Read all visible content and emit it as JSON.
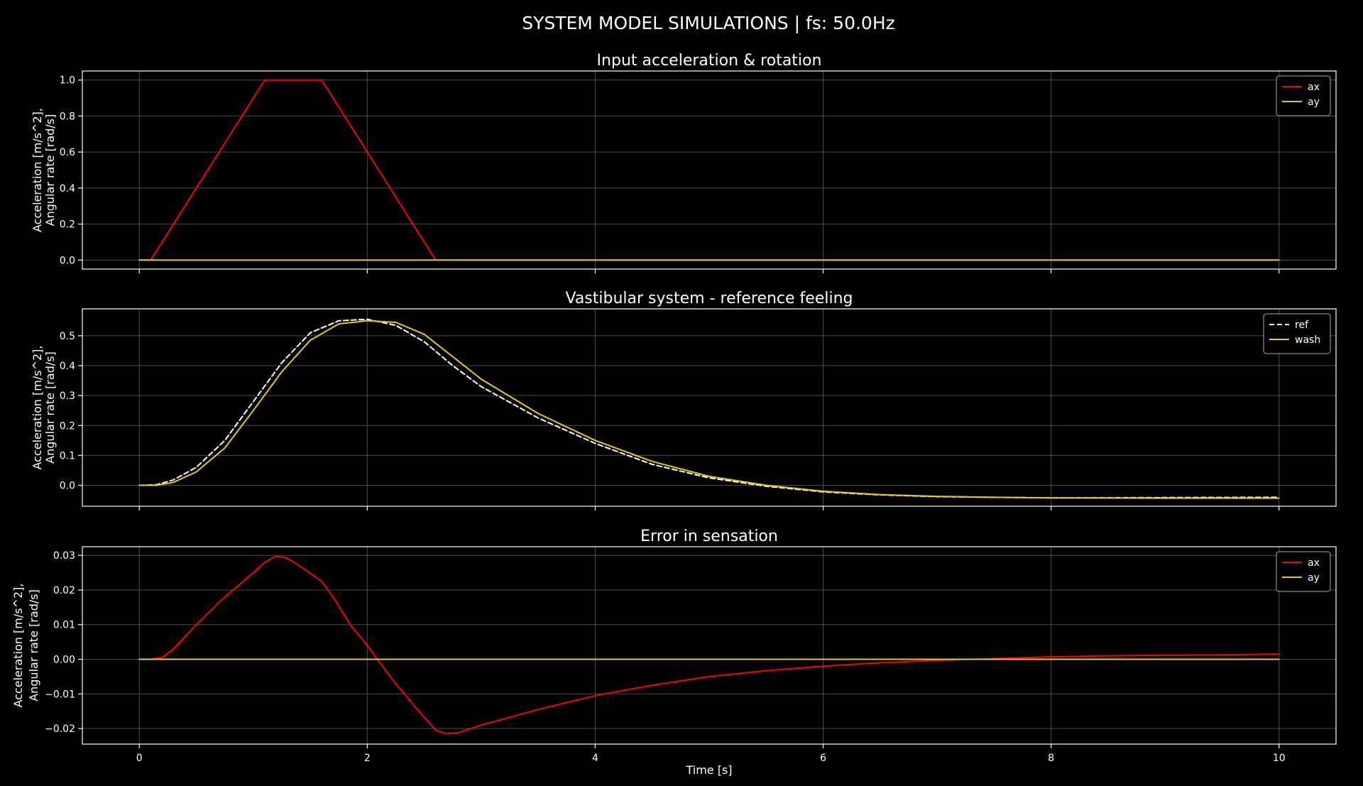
{
  "figure": {
    "title": "SYSTEM MODEL SIMULATIONS | fs: 50.0Hz",
    "background": "#000000",
    "foreground": "#ffffff",
    "grid_color": "#555555"
  },
  "chart_data": [
    {
      "type": "line",
      "title": "Input acceleration & rotation",
      "xlabel": "",
      "ylabel": [
        "Acceleration [m/s^2],",
        "Angular rate [rad/s]"
      ],
      "xlim": [
        -0.5,
        10.5
      ],
      "ylim": [
        -0.05,
        1.05
      ],
      "xticks": [
        0,
        2,
        4,
        6,
        8,
        10
      ],
      "xtick_labels": [],
      "yticks": [
        0.0,
        0.2,
        0.4,
        0.6,
        0.8,
        1.0
      ],
      "ytick_labels": [
        "0.0",
        "0.2",
        "0.4",
        "0.6",
        "0.8",
        "1.0"
      ],
      "grid": true,
      "legend": "top-right",
      "series": [
        {
          "name": "ax",
          "color": "#ff0000",
          "style": "solid",
          "x": [
            0,
            0.1,
            1.1,
            1.6,
            2.6,
            10
          ],
          "y": [
            0,
            0,
            1.0,
            1.0,
            0,
            0
          ]
        },
        {
          "name": "ay",
          "color": "#e6c81e",
          "style": "solid",
          "x": [
            0,
            10
          ],
          "y": [
            0,
            0
          ]
        }
      ]
    },
    {
      "type": "line",
      "title": "Vastibular system - reference feeling",
      "xlabel": "",
      "ylabel": [
        "Acceleration [m/s^2],",
        "Angular rate [rad/s]"
      ],
      "xlim": [
        -0.5,
        10.5
      ],
      "ylim": [
        -0.07,
        0.59
      ],
      "xticks": [
        0,
        2,
        4,
        6,
        8,
        10
      ],
      "xtick_labels": [],
      "yticks": [
        0.0,
        0.1,
        0.2,
        0.3,
        0.4,
        0.5
      ],
      "ytick_labels": [
        "0.0",
        "0.1",
        "0.2",
        "0.3",
        "0.4",
        "0.5"
      ],
      "grid": true,
      "legend": "top-right",
      "series": [
        {
          "name": "ref",
          "color": "#ffffff",
          "style": "dashed",
          "x": [
            0,
            0.15,
            0.3,
            0.5,
            0.75,
            1.0,
            1.25,
            1.5,
            1.75,
            2.0,
            2.25,
            2.5,
            2.75,
            3.0,
            3.5,
            4.0,
            4.5,
            5.0,
            5.5,
            6.0,
            6.5,
            7.0,
            7.5,
            8.0,
            9.0,
            10.0
          ],
          "y": [
            0,
            0.002,
            0.018,
            0.06,
            0.15,
            0.28,
            0.41,
            0.51,
            0.55,
            0.555,
            0.535,
            0.48,
            0.4,
            0.33,
            0.225,
            0.14,
            0.07,
            0.025,
            -0.003,
            -0.022,
            -0.032,
            -0.038,
            -0.04,
            -0.042,
            -0.041,
            -0.04
          ]
        },
        {
          "name": "wash",
          "color": "#e6c81e",
          "style": "solid",
          "x": [
            0,
            0.15,
            0.3,
            0.5,
            0.75,
            1.0,
            1.25,
            1.5,
            1.75,
            2.0,
            2.25,
            2.5,
            2.75,
            3.0,
            3.5,
            4.0,
            4.5,
            5.0,
            5.5,
            6.0,
            6.5,
            7.0,
            7.5,
            8.0,
            9.0,
            10.0
          ],
          "y": [
            0,
            0.0,
            0.01,
            0.045,
            0.125,
            0.25,
            0.38,
            0.485,
            0.54,
            0.55,
            0.545,
            0.505,
            0.43,
            0.355,
            0.24,
            0.15,
            0.08,
            0.03,
            0.0,
            -0.02,
            -0.031,
            -0.037,
            -0.04,
            -0.042,
            -0.043,
            -0.043
          ]
        }
      ]
    },
    {
      "type": "line",
      "title": "Error in sensation",
      "xlabel": "Time [s]",
      "ylabel": [
        "Acceleration [m/s^2],",
        "Angular rate [rad/s]"
      ],
      "xlim": [
        -0.5,
        10.5
      ],
      "ylim": [
        -0.0245,
        0.0325
      ],
      "xticks": [
        0,
        2,
        4,
        6,
        8,
        10
      ],
      "xtick_labels": [
        "0",
        "2",
        "4",
        "6",
        "8",
        "10"
      ],
      "yticks": [
        -0.02,
        -0.01,
        0.0,
        0.01,
        0.02,
        0.03
      ],
      "ytick_labels": [
        "−0.02",
        "−0.01",
        "0.00",
        "0.01",
        "0.02",
        "0.03"
      ],
      "grid": true,
      "legend": "top-right",
      "series": [
        {
          "name": "ax",
          "color": "#ff0000",
          "style": "solid",
          "x": [
            0,
            0.1,
            0.2,
            0.3,
            0.5,
            0.75,
            1.0,
            1.1,
            1.2,
            1.3,
            1.45,
            1.6,
            1.7,
            1.85,
            2.0,
            2.2,
            2.4,
            2.6,
            2.7,
            2.8,
            3.0,
            3.5,
            4.0,
            4.5,
            5.0,
            5.5,
            6.0,
            6.5,
            7.0,
            7.5,
            8.0,
            8.5,
            9.0,
            9.5,
            10.0
          ],
          "y": [
            0,
            0,
            0.0005,
            0.003,
            0.01,
            0.018,
            0.025,
            0.028,
            0.0298,
            0.0292,
            0.026,
            0.0225,
            0.018,
            0.01,
            0.004,
            -0.005,
            -0.013,
            -0.0205,
            -0.0215,
            -0.0212,
            -0.019,
            -0.0145,
            -0.0105,
            -0.0075,
            -0.005,
            -0.0033,
            -0.002,
            -0.001,
            -0.0003,
            0.0002,
            0.0007,
            0.001,
            0.0012,
            0.0013,
            0.0015
          ]
        },
        {
          "name": "ay",
          "color": "#e6c81e",
          "style": "solid",
          "x": [
            0,
            10
          ],
          "y": [
            0,
            0
          ]
        }
      ]
    }
  ]
}
